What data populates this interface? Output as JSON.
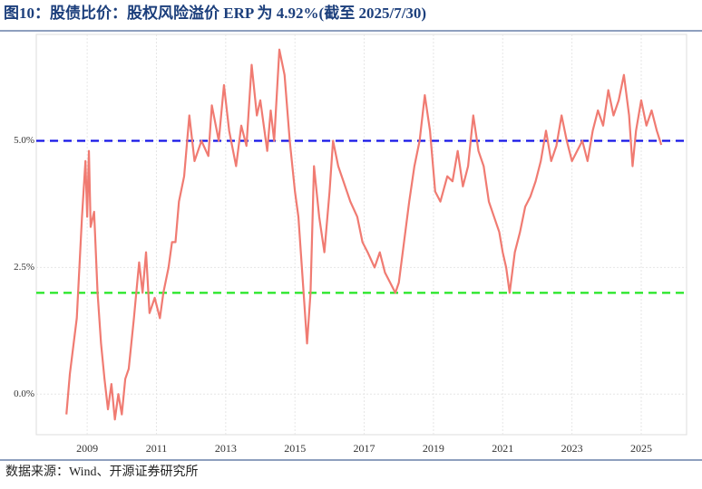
{
  "chart_data": {
    "type": "line",
    "title": "图10：股债比价：股权风险溢价 ERP 为 4.92%(截至 2025/7/30)",
    "source": "数据来源：Wind、开源证券研究所",
    "x": [
      2008.4,
      2008.5,
      2008.7,
      2008.85,
      2008.95,
      2009.0,
      2009.05,
      2009.1,
      2009.2,
      2009.3,
      2009.4,
      2009.5,
      2009.6,
      2009.7,
      2009.8,
      2009.9,
      2010.0,
      2010.1,
      2010.2,
      2010.35,
      2010.5,
      2010.6,
      2010.7,
      2010.8,
      2010.95,
      2011.1,
      2011.2,
      2011.35,
      2011.45,
      2011.55,
      2011.65,
      2011.8,
      2011.95,
      2012.1,
      2012.3,
      2012.5,
      2012.6,
      2012.8,
      2012.95,
      2013.1,
      2013.3,
      2013.45,
      2013.6,
      2013.75,
      2013.9,
      2014.0,
      2014.2,
      2014.3,
      2014.4,
      2014.55,
      2014.7,
      2014.85,
      2015.0,
      2015.1,
      2015.25,
      2015.35,
      2015.45,
      2015.55,
      2015.7,
      2015.85,
      2016.0,
      2016.1,
      2016.25,
      2016.4,
      2016.6,
      2016.8,
      2016.95,
      2017.1,
      2017.3,
      2017.45,
      2017.6,
      2017.75,
      2017.9,
      2018.0,
      2018.15,
      2018.3,
      2018.45,
      2018.6,
      2018.75,
      2018.9,
      2019.05,
      2019.2,
      2019.4,
      2019.55,
      2019.7,
      2019.85,
      2020.0,
      2020.15,
      2020.3,
      2020.45,
      2020.6,
      2020.75,
      2020.9,
      2021.0,
      2021.1,
      2021.2,
      2021.35,
      2021.5,
      2021.65,
      2021.8,
      2021.95,
      2022.1,
      2022.25,
      2022.4,
      2022.55,
      2022.7,
      2022.85,
      2023.0,
      2023.15,
      2023.3,
      2023.45,
      2023.6,
      2023.75,
      2023.9,
      2024.05,
      2024.2,
      2024.35,
      2024.5,
      2024.65,
      2024.75,
      2024.85,
      2025.0,
      2025.15,
      2025.3,
      2025.45,
      2025.58
    ],
    "series": [
      {
        "name": "ERP",
        "color": "#f07b72",
        "values": [
          -0.4,
          0.4,
          1.5,
          3.5,
          4.6,
          3.5,
          4.8,
          3.3,
          3.6,
          2.0,
          1.0,
          0.3,
          -0.3,
          0.2,
          -0.5,
          0.0,
          -0.4,
          0.3,
          0.5,
          1.5,
          2.6,
          2.0,
          2.8,
          1.6,
          1.9,
          1.5,
          2.0,
          2.5,
          3.0,
          3.0,
          3.8,
          4.3,
          5.5,
          4.6,
          5.0,
          4.7,
          5.7,
          5.0,
          6.1,
          5.2,
          4.5,
          5.3,
          4.9,
          6.5,
          5.5,
          5.8,
          4.8,
          5.6,
          5.0,
          6.8,
          6.3,
          5.0,
          4.0,
          3.5,
          2.0,
          1.0,
          2.0,
          4.5,
          3.5,
          2.8,
          4.0,
          5.0,
          4.5,
          4.2,
          3.8,
          3.5,
          3.0,
          2.8,
          2.5,
          2.8,
          2.4,
          2.2,
          2.0,
          2.2,
          3.0,
          3.8,
          4.5,
          5.0,
          5.9,
          5.2,
          4.0,
          3.8,
          4.3,
          4.2,
          4.8,
          4.1,
          4.5,
          5.5,
          4.8,
          4.5,
          3.8,
          3.5,
          3.2,
          2.8,
          2.5,
          2.0,
          2.8,
          3.2,
          3.7,
          3.9,
          4.2,
          4.6,
          5.2,
          4.6,
          4.9,
          5.5,
          5.0,
          4.6,
          4.8,
          5.0,
          4.6,
          5.2,
          5.6,
          5.3,
          6.0,
          5.5,
          5.8,
          6.3,
          5.5,
          4.5,
          5.2,
          5.8,
          5.3,
          5.6,
          5.2,
          4.92
        ]
      }
    ],
    "reference_lines": [
      {
        "value": 5,
        "color": "#1414e6"
      },
      {
        "value": 2,
        "color": "#22e622"
      }
    ],
    "xlim": [
      2007.53,
      2026.31
    ],
    "xticks": [
      2009,
      2011,
      2013,
      2015,
      2017,
      2019,
      2021,
      2023,
      2025
    ],
    "ylim": [
      -0.8,
      7.1
    ],
    "yticks": [
      {
        "value": 0,
        "label": "0.0%"
      },
      {
        "value": 2.5,
        "label": "2.5%"
      },
      {
        "value": 5,
        "label": "5.0%"
      }
    ],
    "grid": true
  }
}
